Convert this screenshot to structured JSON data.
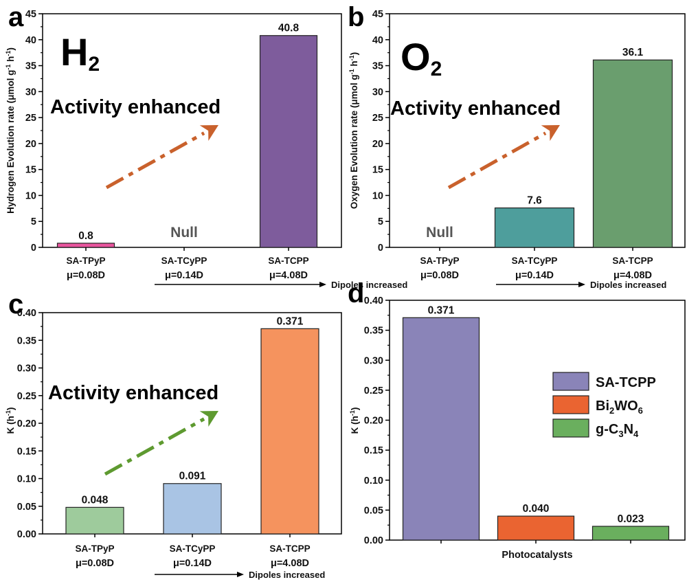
{
  "figure": {
    "panel_letters": [
      "a",
      "b",
      "c",
      "d"
    ]
  },
  "chart_data": [
    {
      "panel": "a",
      "type": "bar",
      "big_label": {
        "main": "H",
        "sub": "2"
      },
      "annotation": "Activity enhanced",
      "ylabel": {
        "text": "Hydrogen Evolution rate (μmol g",
        "sup1": "-1",
        "mid": " h",
        "sup2": "-1",
        "end": ")"
      },
      "ylim": [
        0,
        45
      ],
      "yticks": [
        0,
        5,
        10,
        15,
        20,
        25,
        30,
        35,
        40,
        45
      ],
      "categories": [
        {
          "name": "SA-TPyP",
          "dipole": "μ=0.08D"
        },
        {
          "name": "SA-TCyPP",
          "dipole": "μ=0.14D"
        },
        {
          "name": "SA-TCPP",
          "dipole": "μ=4.08D"
        }
      ],
      "values": [
        0.8,
        null,
        40.8
      ],
      "value_labels": [
        "0.8",
        "Null",
        "40.8"
      ],
      "colors": [
        "#e8559e",
        null,
        "#7e5c9c"
      ],
      "arrow_label": "Dipoles increased",
      "trend_arrow_color": "#c9612c"
    },
    {
      "panel": "b",
      "type": "bar",
      "big_label": {
        "main": "O",
        "sub": "2"
      },
      "annotation": "Activity enhanced",
      "ylabel": {
        "text": "Oxygen Evolution rate (μmol g",
        "sup1": "-1",
        "mid": " h",
        "sup2": "-1",
        "end": ")"
      },
      "ylim": [
        0,
        45
      ],
      "yticks": [
        0,
        5,
        10,
        15,
        20,
        25,
        30,
        35,
        40,
        45
      ],
      "categories": [
        {
          "name": "SA-TPyP",
          "dipole": "μ=0.08D"
        },
        {
          "name": "SA-TCyPP",
          "dipole": "μ=0.14D"
        },
        {
          "name": "SA-TCPP",
          "dipole": "μ=4.08D"
        }
      ],
      "values": [
        null,
        7.6,
        36.1
      ],
      "value_labels": [
        "Null",
        "7.6",
        "36.1"
      ],
      "colors": [
        null,
        "#4e9e9c",
        "#6a9e6e"
      ],
      "arrow_label": "Dipoles increased",
      "trend_arrow_color": "#c9612c"
    },
    {
      "panel": "c",
      "type": "bar",
      "annotation": "Activity enhanced",
      "ylabel": {
        "text": "K (h",
        "sup1": "-1",
        "mid": "",
        "sup2": "",
        "end": ")"
      },
      "ylim": [
        0,
        0.4
      ],
      "yticks": [
        "0.00",
        "0.05",
        "0.10",
        "0.15",
        "0.20",
        "0.25",
        "0.30",
        "0.35",
        "0.40"
      ],
      "categories": [
        {
          "name": "SA-TPyP",
          "dipole": "μ=0.08D"
        },
        {
          "name": "SA-TCyPP",
          "dipole": "μ=0.14D"
        },
        {
          "name": "SA-TCPP",
          "dipole": "μ=4.08D"
        }
      ],
      "values": [
        0.048,
        0.091,
        0.371
      ],
      "value_labels": [
        "0.048",
        "0.091",
        "0.371"
      ],
      "colors": [
        "#9ecb9c",
        "#a9c4e4",
        "#f5935e"
      ],
      "arrow_label": "Dipoles increased",
      "trend_arrow_color": "#5e9a30"
    },
    {
      "panel": "d",
      "type": "bar",
      "ylabel": {
        "text": "K (h",
        "sup1": "-1",
        "mid": "",
        "sup2": "",
        "end": ")"
      },
      "xlabel": "Photocatalysts",
      "ylim": [
        0,
        0.4
      ],
      "yticks": [
        "0.00",
        "0.05",
        "0.10",
        "0.15",
        "0.20",
        "0.25",
        "0.30",
        "0.35",
        "0.40"
      ],
      "categories": [
        "SA-TCPP",
        "Bi2WO6",
        "g-C3N4"
      ],
      "values": [
        0.371,
        0.04,
        0.023
      ],
      "value_labels": [
        "0.371",
        "0.040",
        "0.023"
      ],
      "colors": [
        "#8a84b8",
        "#ea6431",
        "#6aaf5e"
      ],
      "legend": [
        {
          "parts": [
            {
              "t": "SA-TCPP"
            }
          ],
          "color": "#8a84b8"
        },
        {
          "parts": [
            {
              "t": "Bi"
            },
            {
              "t": "2",
              "sub": true
            },
            {
              "t": "WO"
            },
            {
              "t": "6",
              "sub": true
            }
          ],
          "color": "#ea6431"
        },
        {
          "parts": [
            {
              "t": "g-C"
            },
            {
              "t": "3",
              "sub": true
            },
            {
              "t": "N"
            },
            {
              "t": "4",
              "sub": true
            }
          ],
          "color": "#6aaf5e"
        }
      ],
      "legend_position": "right"
    }
  ]
}
